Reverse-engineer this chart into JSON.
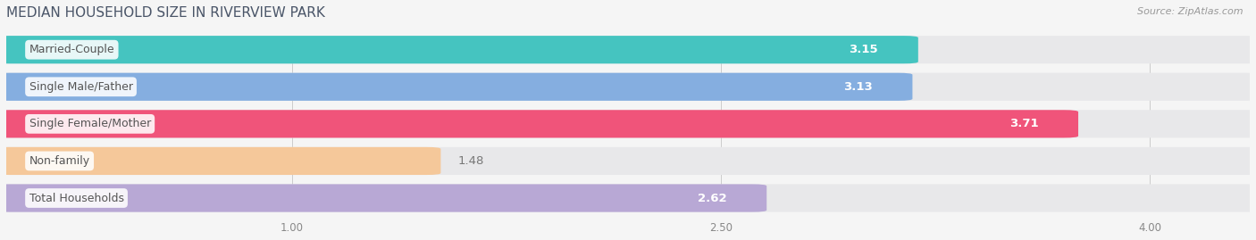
{
  "title": "MEDIAN HOUSEHOLD SIZE IN RIVERVIEW PARK",
  "source": "Source: ZipAtlas.com",
  "categories": [
    "Married-Couple",
    "Single Male/Father",
    "Single Female/Mother",
    "Non-family",
    "Total Households"
  ],
  "values": [
    3.15,
    3.13,
    3.71,
    1.48,
    2.62
  ],
  "colors": [
    "#45c4c0",
    "#85aee0",
    "#f0547a",
    "#f5c89a",
    "#b8a8d5"
  ],
  "bg_color": "#ffffff",
  "fig_bg_color": "#f5f5f5",
  "bar_bg_color": "#e8e8ea",
  "xlim_min": 0.0,
  "xlim_max": 4.35,
  "data_min": 1.0,
  "data_max": 4.0,
  "xticks": [
    1.0,
    2.5,
    4.0
  ],
  "xtick_labels": [
    "1.00",
    "2.50",
    "4.00"
  ],
  "bar_height": 0.65,
  "bar_gap": 0.35,
  "value_fontsize": 9.5,
  "label_fontsize": 9,
  "title_fontsize": 11,
  "title_color": "#4a5568",
  "source_color": "#999999",
  "label_text_color": "#555555",
  "value_color_inside": "#ffffff",
  "value_color_outside": "#777777"
}
